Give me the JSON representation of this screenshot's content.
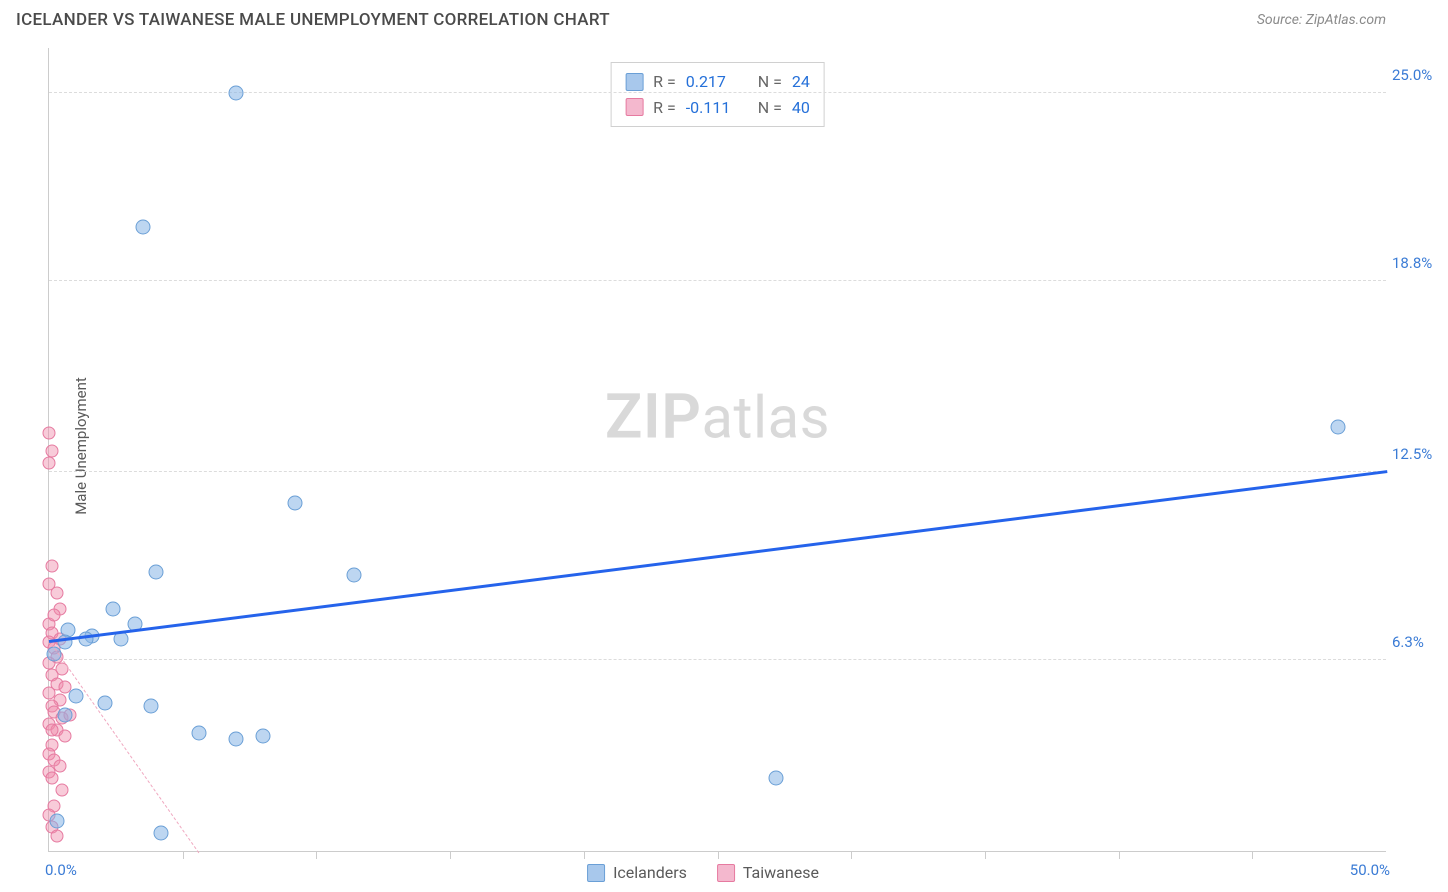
{
  "header": {
    "title": "ICELANDER VS TAIWANESE MALE UNEMPLOYMENT CORRELATION CHART",
    "source_prefix": "Source:",
    "source_name": "ZipAtlas.com"
  },
  "axes": {
    "y_label": "Male Unemployment",
    "x_min": 0.0,
    "x_max": 50.0,
    "x_min_label": "0.0%",
    "x_max_label": "50.0%",
    "y_min": 0.0,
    "y_max": 26.5,
    "y_ticks": [
      6.3,
      12.5,
      18.8,
      25.0
    ],
    "y_tick_labels": [
      "6.3%",
      "12.5%",
      "18.8%",
      "25.0%"
    ],
    "x_minor_ticks": [
      5,
      10,
      15,
      20,
      25,
      30,
      35,
      40,
      45
    ],
    "grid_color": "#dcdcdc"
  },
  "watermark": {
    "zip": "ZIP",
    "atlas": "atlas"
  },
  "legend_top": {
    "rows": [
      {
        "swatch": "blue",
        "r_label": "R =",
        "r_val": "0.217",
        "n_label": "N =",
        "n_val": "24"
      },
      {
        "swatch": "pink",
        "r_label": "R =",
        "r_val": "-0.111",
        "n_label": "N =",
        "n_val": "40"
      }
    ]
  },
  "legend_bottom": {
    "items": [
      {
        "swatch": "blue",
        "label": "Icelanders"
      },
      {
        "swatch": "pink",
        "label": "Taiwanese"
      }
    ]
  },
  "series_blue": {
    "color_fill": "rgba(135,180,230,0.55)",
    "color_stroke": "#6a9fd6",
    "marker_size": 15,
    "points": [
      [
        7.0,
        25.0
      ],
      [
        3.5,
        20.6
      ],
      [
        48.2,
        14.0
      ],
      [
        9.2,
        11.5
      ],
      [
        4.0,
        9.2
      ],
      [
        11.4,
        9.1
      ],
      [
        2.4,
        8.0
      ],
      [
        3.2,
        7.5
      ],
      [
        0.7,
        7.3
      ],
      [
        1.6,
        7.1
      ],
      [
        2.7,
        7.0
      ],
      [
        0.2,
        6.5
      ],
      [
        1.0,
        5.1
      ],
      [
        2.1,
        4.9
      ],
      [
        3.8,
        4.8
      ],
      [
        0.6,
        4.5
      ],
      [
        5.6,
        3.9
      ],
      [
        7.0,
        3.7
      ],
      [
        8.0,
        3.8
      ],
      [
        0.6,
        6.9
      ],
      [
        27.2,
        2.4
      ],
      [
        0.3,
        1.0
      ],
      [
        4.2,
        0.6
      ],
      [
        1.4,
        7.0
      ]
    ],
    "trend": {
      "x1": 0.0,
      "y1": 7.0,
      "x2": 50.0,
      "y2": 12.6
    }
  },
  "series_pink": {
    "color_fill": "rgba(240,140,170,0.45)",
    "color_stroke": "#e67aa0",
    "marker_size": 13,
    "points": [
      [
        0.0,
        13.8
      ],
      [
        0.1,
        13.2
      ],
      [
        0.0,
        12.8
      ],
      [
        0.1,
        9.4
      ],
      [
        0.3,
        8.5
      ],
      [
        0.4,
        8.0
      ],
      [
        0.0,
        7.5
      ],
      [
        0.1,
        7.2
      ],
      [
        0.4,
        7.0
      ],
      [
        0.0,
        6.9
      ],
      [
        0.2,
        6.7
      ],
      [
        0.3,
        6.4
      ],
      [
        0.0,
        6.2
      ],
      [
        0.5,
        6.0
      ],
      [
        0.1,
        5.8
      ],
      [
        0.3,
        5.5
      ],
      [
        0.0,
        5.2
      ],
      [
        0.4,
        5.0
      ],
      [
        0.1,
        4.8
      ],
      [
        0.2,
        4.6
      ],
      [
        0.5,
        4.4
      ],
      [
        0.0,
        4.2
      ],
      [
        0.3,
        4.0
      ],
      [
        0.6,
        3.8
      ],
      [
        0.1,
        3.5
      ],
      [
        0.0,
        3.2
      ],
      [
        0.2,
        3.0
      ],
      [
        0.4,
        2.8
      ],
      [
        0.0,
        2.6
      ],
      [
        0.1,
        2.4
      ],
      [
        0.5,
        2.0
      ],
      [
        0.2,
        1.5
      ],
      [
        0.0,
        1.2
      ],
      [
        0.1,
        0.8
      ],
      [
        0.3,
        0.5
      ],
      [
        0.6,
        5.4
      ],
      [
        0.8,
        4.5
      ],
      [
        0.2,
        7.8
      ],
      [
        0.0,
        8.8
      ],
      [
        0.1,
        4.0
      ]
    ],
    "trend": {
      "x1": 0.0,
      "y1": 7.0,
      "x2": 5.6,
      "y2": 0.0
    }
  },
  "colors": {
    "title": "#4a4a4a",
    "source": "#8a8a8a",
    "axis_label": "#5a5a5a",
    "tick_text": "#3a7bd5",
    "blue_line": "#2563eb",
    "background": "#ffffff"
  }
}
